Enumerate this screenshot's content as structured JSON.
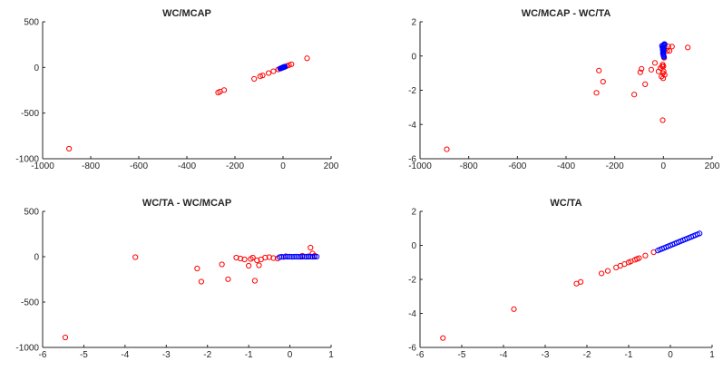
{
  "chart_data": [
    {
      "type": "scatter",
      "title": "WC/MCAP",
      "xlabel": "",
      "ylabel": "",
      "xlim": [
        -1000,
        200
      ],
      "ylim": [
        -1000,
        500
      ],
      "xticks": [
        -1000,
        -800,
        -600,
        -400,
        -200,
        0,
        200
      ],
      "yticks": [
        -1000,
        -500,
        0,
        500
      ],
      "grid": false,
      "series": [
        {
          "color": "#ff0000",
          "marker": "open-circle",
          "points": [
            [
              -890,
              -890
            ],
            [
              -270,
              -275
            ],
            [
              -262,
              -265
            ],
            [
              -245,
              -248
            ],
            [
              -120,
              -125
            ],
            [
              -95,
              -97
            ],
            [
              -85,
              -88
            ],
            [
              -60,
              -62
            ],
            [
              -40,
              -42
            ],
            [
              -20,
              -22
            ],
            [
              -10,
              -12
            ],
            [
              5,
              5
            ],
            [
              15,
              15
            ],
            [
              25,
              25
            ],
            [
              35,
              35
            ],
            [
              100,
              100
            ]
          ]
        },
        {
          "color": "#0000ff",
          "marker": "open-circle",
          "points": [
            [
              -12,
              -12
            ],
            [
              -8,
              -8
            ],
            [
              -5,
              -5
            ],
            [
              -3,
              -3
            ],
            [
              -1,
              -1
            ],
            [
              0,
              0
            ],
            [
              1,
              1
            ],
            [
              2,
              2
            ],
            [
              3,
              3
            ],
            [
              4,
              4
            ],
            [
              5,
              5
            ],
            [
              6,
              6
            ],
            [
              7,
              7
            ],
            [
              8,
              8
            ]
          ]
        }
      ]
    },
    {
      "type": "scatter",
      "title": "WC/MCAP - WC/TA",
      "xlabel": "",
      "ylabel": "",
      "xlim": [
        -1000,
        200
      ],
      "ylim": [
        -6,
        2
      ],
      "xticks": [
        -1000,
        -800,
        -600,
        -400,
        -200,
        0,
        200
      ],
      "yticks": [
        -6,
        -4,
        -2,
        0,
        2
      ],
      "grid": false,
      "series": [
        {
          "color": "#ff0000",
          "marker": "open-circle",
          "points": [
            [
              -890,
              -5.45
            ],
            [
              -275,
              -2.15
            ],
            [
              -265,
              -0.85
            ],
            [
              -248,
              -1.5
            ],
            [
              -120,
              -2.25
            ],
            [
              -95,
              -0.95
            ],
            [
              -90,
              -0.75
            ],
            [
              -75,
              -1.65
            ],
            [
              -50,
              -0.8
            ],
            [
              -35,
              -0.4
            ],
            [
              -20,
              -0.9
            ],
            [
              -12,
              -0.7
            ],
            [
              -8,
              -1.2
            ],
            [
              -5,
              -0.6
            ],
            [
              -3,
              -0.5
            ],
            [
              -3,
              -3.75
            ],
            [
              -2,
              -1.0
            ],
            [
              -1,
              -1.3
            ],
            [
              0,
              -0.6
            ],
            [
              1,
              -0.9
            ],
            [
              2,
              0.3
            ],
            [
              3,
              -0.1
            ],
            [
              5,
              -1.1
            ],
            [
              10,
              0.45
            ],
            [
              15,
              0.3
            ],
            [
              20,
              0.55
            ],
            [
              25,
              0.3
            ],
            [
              35,
              0.55
            ],
            [
              100,
              0.5
            ]
          ]
        },
        {
          "color": "#0000ff",
          "marker": "open-circle",
          "points": [
            [
              -6,
              0.6
            ],
            [
              -4,
              0.5
            ],
            [
              -3,
              0.4
            ],
            [
              -2,
              0.3
            ],
            [
              -1,
              0.2
            ],
            [
              0,
              0.1
            ],
            [
              1,
              0.0
            ],
            [
              2,
              -0.05
            ],
            [
              3,
              0.65
            ],
            [
              0,
              0.62
            ],
            [
              -1,
              0.55
            ],
            [
              2,
              0.45
            ],
            [
              1,
              0.35
            ],
            [
              -2,
              0.15
            ],
            [
              0,
              0.05
            ],
            [
              4,
              0.7
            ],
            [
              5,
              0.68
            ]
          ]
        }
      ]
    },
    {
      "type": "scatter",
      "title": "WC/TA - WC/MCAP",
      "xlabel": "",
      "ylabel": "",
      "xlim": [
        -6,
        1
      ],
      "ylim": [
        -1000,
        500
      ],
      "xticks": [
        -6,
        -5,
        -4,
        -3,
        -2,
        -1,
        0,
        1
      ],
      "yticks": [
        -1000,
        -500,
        0,
        500
      ],
      "grid": false,
      "series": [
        {
          "color": "#ff0000",
          "marker": "open-circle",
          "points": [
            [
              -5.45,
              -890
            ],
            [
              -3.75,
              -5
            ],
            [
              -2.25,
              -130
            ],
            [
              -2.15,
              -275
            ],
            [
              -1.65,
              -85
            ],
            [
              -1.5,
              -248
            ],
            [
              -1.3,
              -10
            ],
            [
              -1.2,
              -20
            ],
            [
              -1.1,
              -30
            ],
            [
              -1.0,
              -100
            ],
            [
              -0.95,
              -25
            ],
            [
              -0.9,
              -10
            ],
            [
              -0.85,
              -265
            ],
            [
              -0.8,
              -40
            ],
            [
              -0.75,
              -95
            ],
            [
              -0.7,
              -30
            ],
            [
              -0.6,
              -10
            ],
            [
              -0.5,
              -5
            ],
            [
              -0.4,
              -15
            ],
            [
              -0.3,
              -20
            ],
            [
              -0.25,
              -5
            ],
            [
              -0.1,
              5
            ],
            [
              0.3,
              10
            ],
            [
              0.45,
              5
            ],
            [
              0.5,
              100
            ],
            [
              0.55,
              35
            ],
            [
              0.6,
              10
            ]
          ]
        },
        {
          "color": "#0000ff",
          "marker": "open-circle",
          "points": [
            [
              -0.25,
              -5
            ],
            [
              -0.2,
              0
            ],
            [
              -0.15,
              -3
            ],
            [
              -0.1,
              2
            ],
            [
              -0.05,
              0
            ],
            [
              0.0,
              1
            ],
            [
              0.05,
              -1
            ],
            [
              0.1,
              0
            ],
            [
              0.15,
              1
            ],
            [
              0.2,
              0
            ],
            [
              0.25,
              -1
            ],
            [
              0.3,
              0
            ],
            [
              0.35,
              1
            ],
            [
              0.4,
              0
            ],
            [
              0.45,
              0
            ],
            [
              0.5,
              1
            ],
            [
              0.55,
              0
            ],
            [
              0.6,
              0
            ],
            [
              0.65,
              1
            ]
          ]
        }
      ]
    },
    {
      "type": "scatter",
      "title": "WC/TA",
      "xlabel": "",
      "ylabel": "",
      "xlim": [
        -6,
        1
      ],
      "ylim": [
        -6,
        2
      ],
      "xticks": [
        -6,
        -5,
        -4,
        -3,
        -2,
        -1,
        0,
        1
      ],
      "yticks": [
        -6,
        -4,
        -2,
        0,
        2
      ],
      "grid": false,
      "series": [
        {
          "color": "#ff0000",
          "marker": "open-circle",
          "points": [
            [
              -5.45,
              -5.45
            ],
            [
              -3.75,
              -3.75
            ],
            [
              -2.25,
              -2.25
            ],
            [
              -2.15,
              -2.15
            ],
            [
              -1.65,
              -1.65
            ],
            [
              -1.5,
              -1.5
            ],
            [
              -1.3,
              -1.3
            ],
            [
              -1.2,
              -1.2
            ],
            [
              -1.1,
              -1.1
            ],
            [
              -1.0,
              -1.0
            ],
            [
              -0.95,
              -0.95
            ],
            [
              -0.85,
              -0.85
            ],
            [
              -0.8,
              -0.8
            ],
            [
              -0.75,
              -0.75
            ],
            [
              -0.6,
              -0.6
            ],
            [
              -0.4,
              -0.4
            ]
          ]
        },
        {
          "color": "#0000ff",
          "marker": "open-circle",
          "points": [
            [
              -0.3,
              -0.3
            ],
            [
              -0.25,
              -0.25
            ],
            [
              -0.2,
              -0.2
            ],
            [
              -0.15,
              -0.15
            ],
            [
              -0.1,
              -0.1
            ],
            [
              -0.05,
              -0.05
            ],
            [
              0.0,
              0.0
            ],
            [
              0.05,
              0.05
            ],
            [
              0.1,
              0.1
            ],
            [
              0.15,
              0.15
            ],
            [
              0.2,
              0.2
            ],
            [
              0.25,
              0.25
            ],
            [
              0.3,
              0.3
            ],
            [
              0.35,
              0.35
            ],
            [
              0.4,
              0.4
            ],
            [
              0.45,
              0.45
            ],
            [
              0.5,
              0.5
            ],
            [
              0.55,
              0.55
            ],
            [
              0.6,
              0.6
            ],
            [
              0.65,
              0.65
            ],
            [
              0.7,
              0.7
            ]
          ]
        }
      ]
    }
  ]
}
